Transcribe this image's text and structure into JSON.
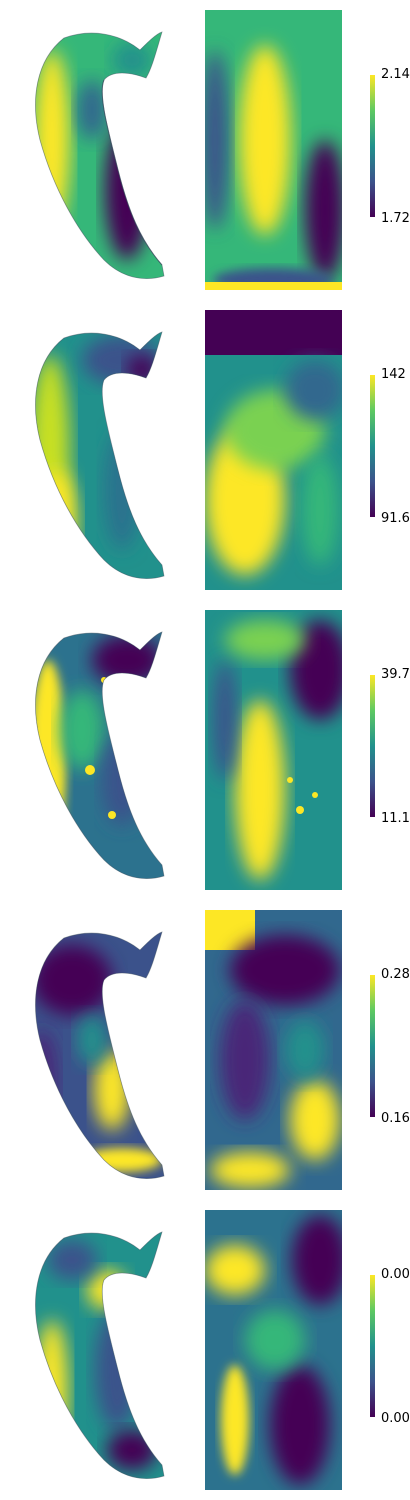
{
  "panels": [
    {
      "max": "2.14",
      "min": "1.72"
    },
    {
      "max": "142",
      "min": "91.6"
    },
    {
      "max": "39.7",
      "min": "11.1"
    },
    {
      "max": "0.28",
      "min": "0.16"
    },
    {
      "max": "0.00",
      "min": "0.00"
    }
  ],
  "colormap": {
    "low": "#440154",
    "mid": "#21918c",
    "high": "#fde725"
  }
}
